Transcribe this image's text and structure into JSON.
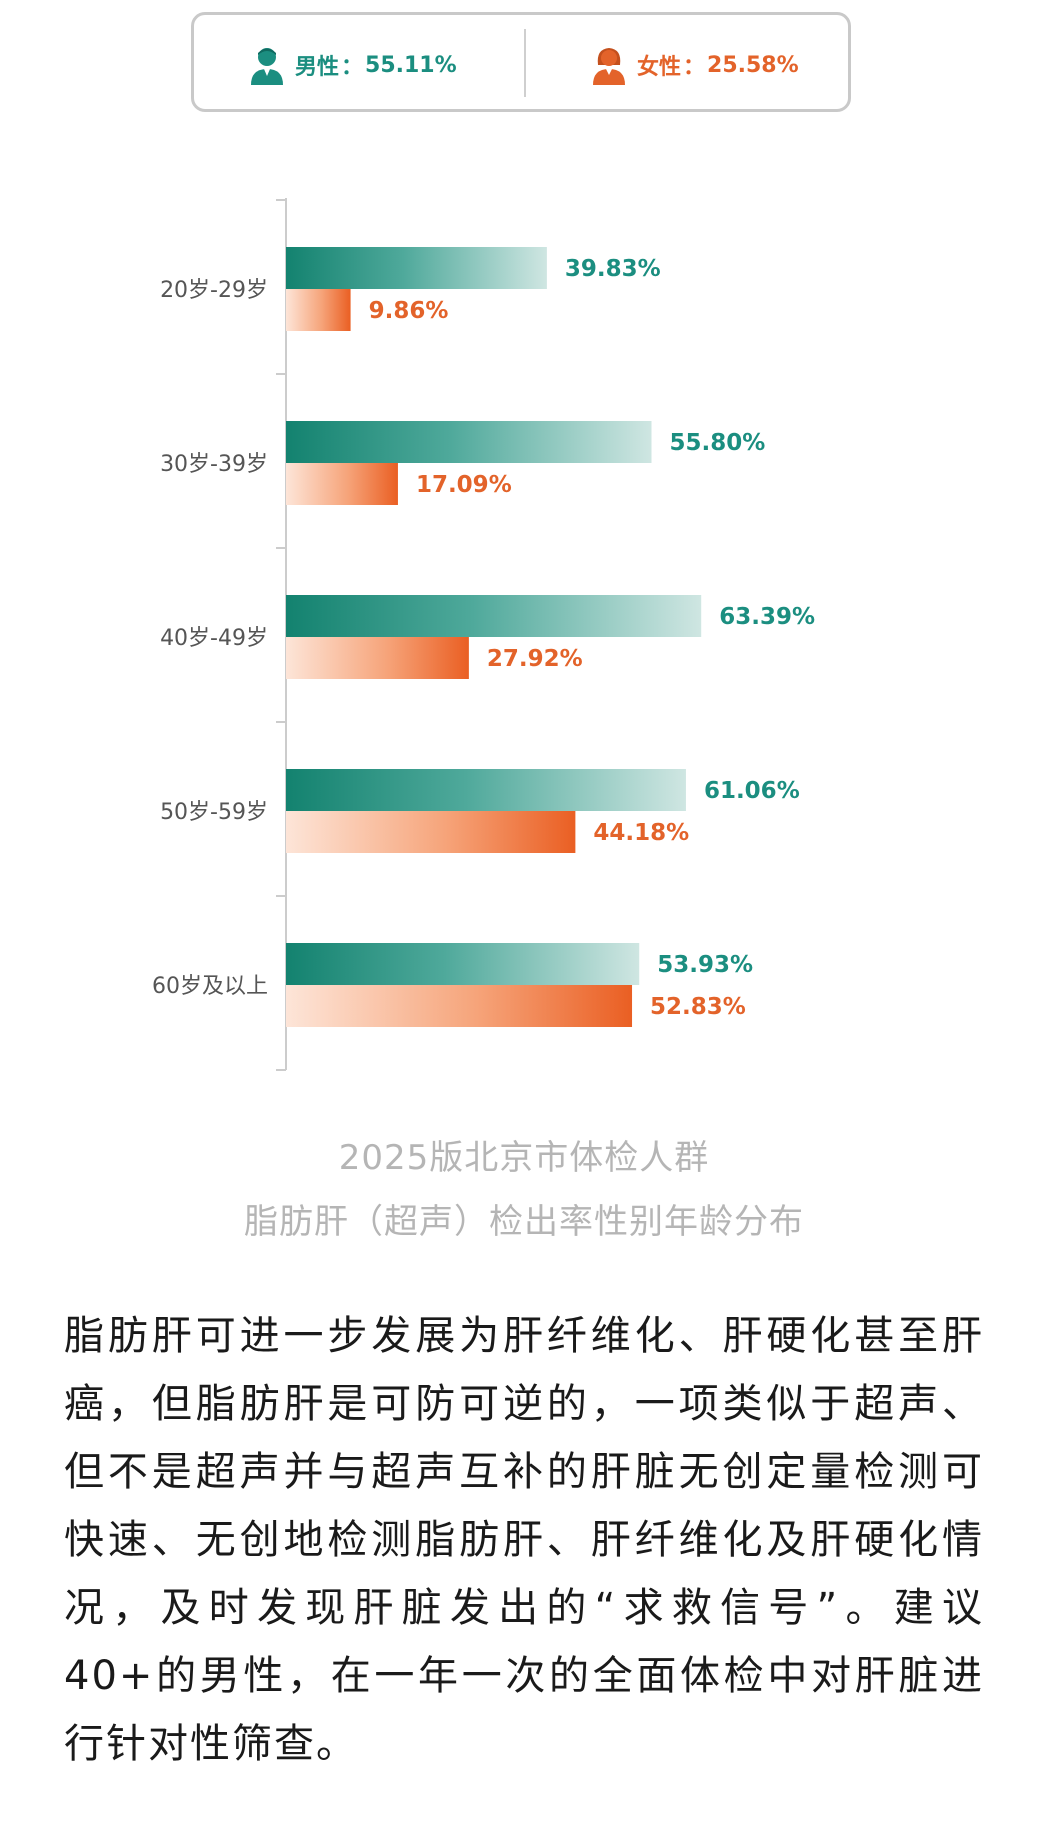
{
  "legend": {
    "male": {
      "label": "男性",
      "value": "55.11%",
      "color": "#1b8e80"
    },
    "female": {
      "label": "女性",
      "value": "25.58%",
      "color": "#e3632a"
    },
    "separator": "："
  },
  "chart_data": {
    "type": "bar",
    "orientation": "horizontal",
    "categories": [
      "20岁-29岁",
      "30岁-39岁",
      "40岁-49岁",
      "50岁-59岁",
      "60岁及以上"
    ],
    "series": [
      {
        "name": "男性",
        "values": [
          39.83,
          55.8,
          63.39,
          61.06,
          53.93
        ],
        "labels": [
          "39.83%",
          "55.80%",
          "63.39%",
          "61.06%",
          "53.93%"
        ],
        "color": "#1b8e80"
      },
      {
        "name": "女性",
        "values": [
          9.86,
          17.09,
          27.92,
          44.18,
          52.83
        ],
        "labels": [
          "9.86%",
          "17.09%",
          "27.92%",
          "44.18%",
          "52.83%"
        ],
        "color": "#e3632a"
      }
    ],
    "xlim": [
      0,
      100
    ],
    "title": "2025版北京市体检人群 脂肪肝（超声）检出率性别年龄分布"
  },
  "caption": {
    "line1": "2025版北京市体检人群",
    "line2": "脂肪肝（超声）检出率性别年龄分布"
  },
  "body_text": "脂肪肝可进一步发展为肝纤维化、肝硬化甚至肝癌，但脂肪肝是可防可逆的，一项类似于超声、但不是超声并与超声互补的肝脏无创定量检测可快速、无创地检测脂肪肝、肝纤维化及肝硬化情况，及时发现肝脏发出的“求救信号”。建议40+的男性，在一年一次的全面体检中对肝脏进行针对性筛查。"
}
